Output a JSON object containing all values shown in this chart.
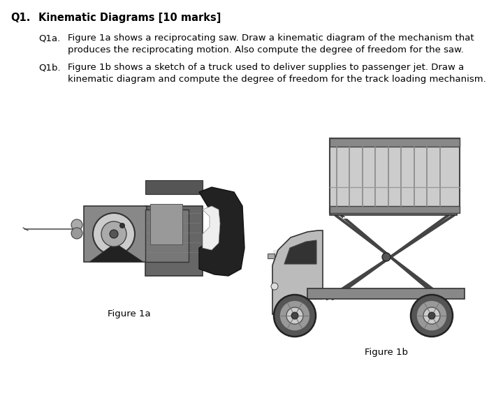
{
  "title_label": "Q1.",
  "title_text": "Kinematic Diagrams [10 marks]",
  "q1a_label": "Q1a.",
  "q1a_text": "Figure 1a shows a reciprocating saw. Draw a kinematic diagram of the mechanism that\nproduces the reciprocating motion. Also compute the degree of freedom for the saw.",
  "q1b_label": "Q1b.",
  "q1b_text": "Figure 1b shows a sketch of a truck used to deliver supplies to passenger jet. Draw a\nkinematic diagram and compute the degree of freedom for the track loading mechanism.",
  "fig1a_caption": "Figure 1a",
  "fig1b_caption": "Figure 1b",
  "bg_color": "#ffffff",
  "text_color": "#000000",
  "title_fontsize": 10.5,
  "body_fontsize": 9.5,
  "caption_fontsize": 9.5
}
